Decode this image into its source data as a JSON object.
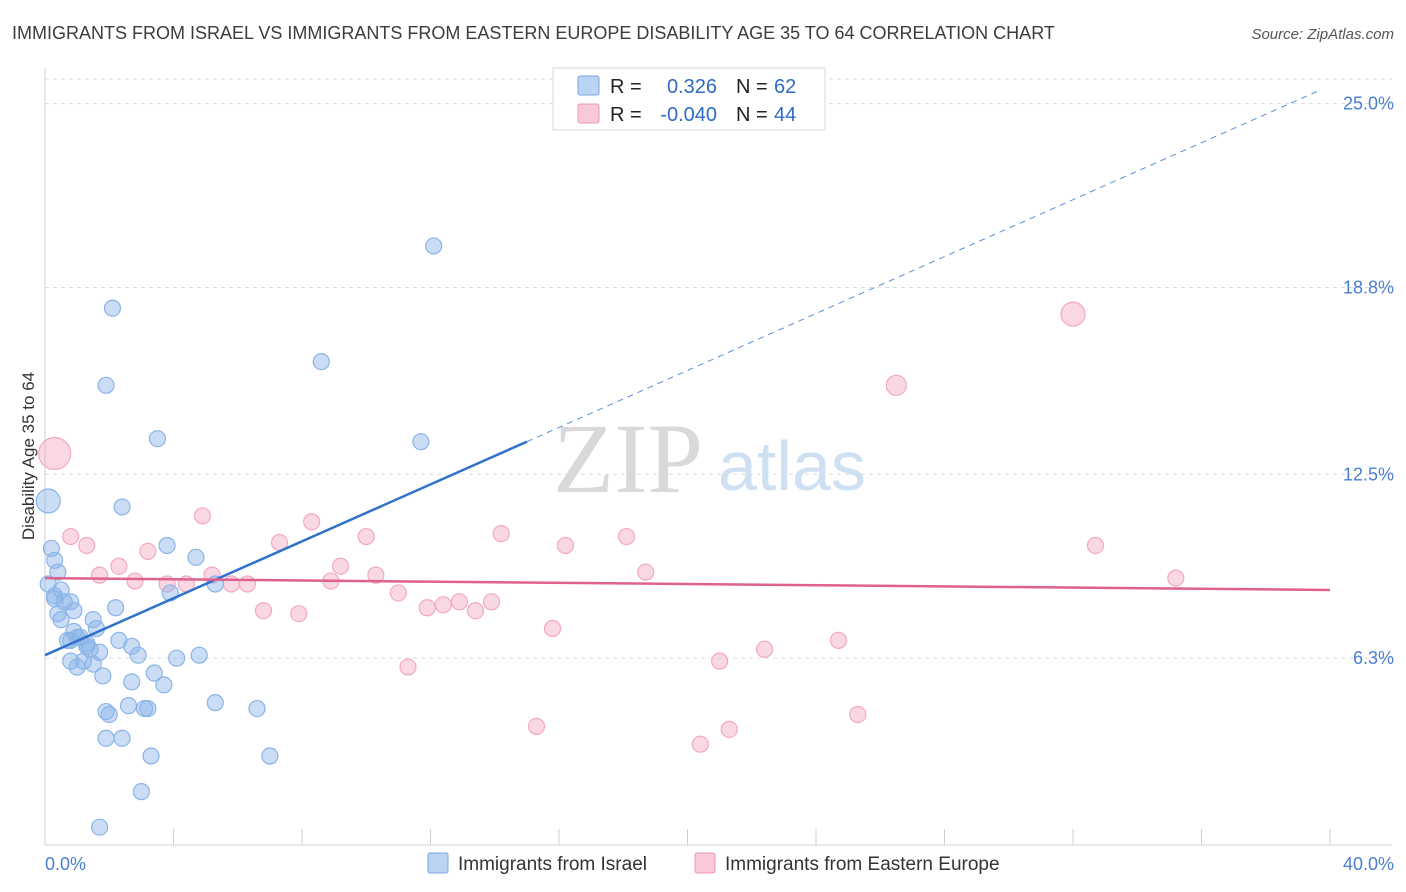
{
  "chart_data": {
    "type": "scatter",
    "title": "IMMIGRANTS FROM ISRAEL VS IMMIGRANTS FROM EASTERN EUROPE DISABILITY AGE 35 TO 64 CORRELATION CHART",
    "source": "Source: ZipAtlas.com",
    "ylabel": "Disability Age 35 to 64",
    "xlim": [
      0,
      40
    ],
    "ylim": [
      0,
      26.2
    ],
    "x_tick_labels": [
      "0.0%",
      "40.0%"
    ],
    "y_ticks": [
      {
        "value": 6.3,
        "label": "6.3%"
      },
      {
        "value": 12.5,
        "label": "12.5%"
      },
      {
        "value": 18.8,
        "label": "18.8%"
      },
      {
        "value": 25.0,
        "label": "25.0%"
      }
    ],
    "watermark": {
      "zip": "ZIP",
      "atlas": "atlas"
    },
    "stats": [
      {
        "r_label": "R =",
        "r_value": "0.326",
        "n_label": "N =",
        "n_value": "62"
      },
      {
        "r_label": "R =",
        "r_value": "-0.040",
        "n_label": "N =",
        "n_value": "44"
      }
    ],
    "series": [
      {
        "name": "Immigrants from Israel",
        "color": "#8ab4e8",
        "line_color": "#2f72cc",
        "trend": {
          "x0": 0,
          "y0": 6.4,
          "x1": 15,
          "y1": 13.6,
          "dash_to_x": 39.7
        },
        "points": [
          [
            2.1,
            18.1
          ],
          [
            12.1,
            20.2
          ],
          [
            8.6,
            16.3
          ],
          [
            1.9,
            15.5
          ],
          [
            3.5,
            13.7
          ],
          [
            11.7,
            13.6
          ],
          [
            0.1,
            11.6
          ],
          [
            2.4,
            11.4
          ],
          [
            0.2,
            10.0
          ],
          [
            3.8,
            10.1
          ],
          [
            0.3,
            9.6
          ],
          [
            4.7,
            9.7
          ],
          [
            0.4,
            9.2
          ],
          [
            0.1,
            8.8
          ],
          [
            0.5,
            8.6
          ],
          [
            0.3,
            8.3
          ],
          [
            0.8,
            8.2
          ],
          [
            0.6,
            8.2
          ],
          [
            3.9,
            8.5
          ],
          [
            5.3,
            8.8
          ],
          [
            2.2,
            8.0
          ],
          [
            0.4,
            7.8
          ],
          [
            0.5,
            7.6
          ],
          [
            1.5,
            7.6
          ],
          [
            0.9,
            7.2
          ],
          [
            1.6,
            7.3
          ],
          [
            1.1,
            7.0
          ],
          [
            0.7,
            6.9
          ],
          [
            1.3,
            6.8
          ],
          [
            2.3,
            6.9
          ],
          [
            0.8,
            6.9
          ],
          [
            1.4,
            6.6
          ],
          [
            2.7,
            6.7
          ],
          [
            1.7,
            6.5
          ],
          [
            2.9,
            6.4
          ],
          [
            0.8,
            6.2
          ],
          [
            1.2,
            6.2
          ],
          [
            1.5,
            6.1
          ],
          [
            1.0,
            6.0
          ],
          [
            4.1,
            6.3
          ],
          [
            4.8,
            6.4
          ],
          [
            1.8,
            5.7
          ],
          [
            3.4,
            5.8
          ],
          [
            2.7,
            5.5
          ],
          [
            3.7,
            5.4
          ],
          [
            2.6,
            4.7
          ],
          [
            3.1,
            4.6
          ],
          [
            3.2,
            4.6
          ],
          [
            5.3,
            4.8
          ],
          [
            6.6,
            4.6
          ],
          [
            1.9,
            4.5
          ],
          [
            2.0,
            4.4
          ],
          [
            1.9,
            3.6
          ],
          [
            2.4,
            3.6
          ],
          [
            3.3,
            3.0
          ],
          [
            7.0,
            3.0
          ],
          [
            3.0,
            1.8
          ],
          [
            1.7,
            0.6
          ],
          [
            0.3,
            8.4
          ],
          [
            1.0,
            7.0
          ],
          [
            1.3,
            6.7
          ],
          [
            0.9,
            7.9
          ]
        ]
      },
      {
        "name": "Immigrants from Eastern Europe",
        "color": "#f4a8c0",
        "line_color": "#e0608f",
        "trend": {
          "x0": 0,
          "y0": 9.0,
          "x1": 40,
          "y1": 8.6,
          "dash_to_x": 40
        },
        "points": [
          [
            0.3,
            13.2
          ],
          [
            32.0,
            17.9
          ],
          [
            26.5,
            15.5
          ],
          [
            0.8,
            10.4
          ],
          [
            1.3,
            10.1
          ],
          [
            4.9,
            11.1
          ],
          [
            8.3,
            10.9
          ],
          [
            14.2,
            10.5
          ],
          [
            18.1,
            10.4
          ],
          [
            7.3,
            10.2
          ],
          [
            10.0,
            10.4
          ],
          [
            16.2,
            10.1
          ],
          [
            32.7,
            10.1
          ],
          [
            3.2,
            9.9
          ],
          [
            2.3,
            9.4
          ],
          [
            9.2,
            9.4
          ],
          [
            18.7,
            9.2
          ],
          [
            1.7,
            9.1
          ],
          [
            5.2,
            9.1
          ],
          [
            10.3,
            9.1
          ],
          [
            35.2,
            9.0
          ],
          [
            2.8,
            8.9
          ],
          [
            8.9,
            8.9
          ],
          [
            3.8,
            8.8
          ],
          [
            4.4,
            8.8
          ],
          [
            5.8,
            8.8
          ],
          [
            6.3,
            8.8
          ],
          [
            11.0,
            8.5
          ],
          [
            12.9,
            8.2
          ],
          [
            13.9,
            8.2
          ],
          [
            12.4,
            8.1
          ],
          [
            11.9,
            8.0
          ],
          [
            6.8,
            7.9
          ],
          [
            7.9,
            7.8
          ],
          [
            13.4,
            7.9
          ],
          [
            15.8,
            7.3
          ],
          [
            24.7,
            6.9
          ],
          [
            22.4,
            6.6
          ],
          [
            11.3,
            6.0
          ],
          [
            21.0,
            6.2
          ],
          [
            25.3,
            4.4
          ],
          [
            15.3,
            4.0
          ],
          [
            21.3,
            3.9
          ],
          [
            20.4,
            3.4
          ]
        ]
      }
    ]
  }
}
